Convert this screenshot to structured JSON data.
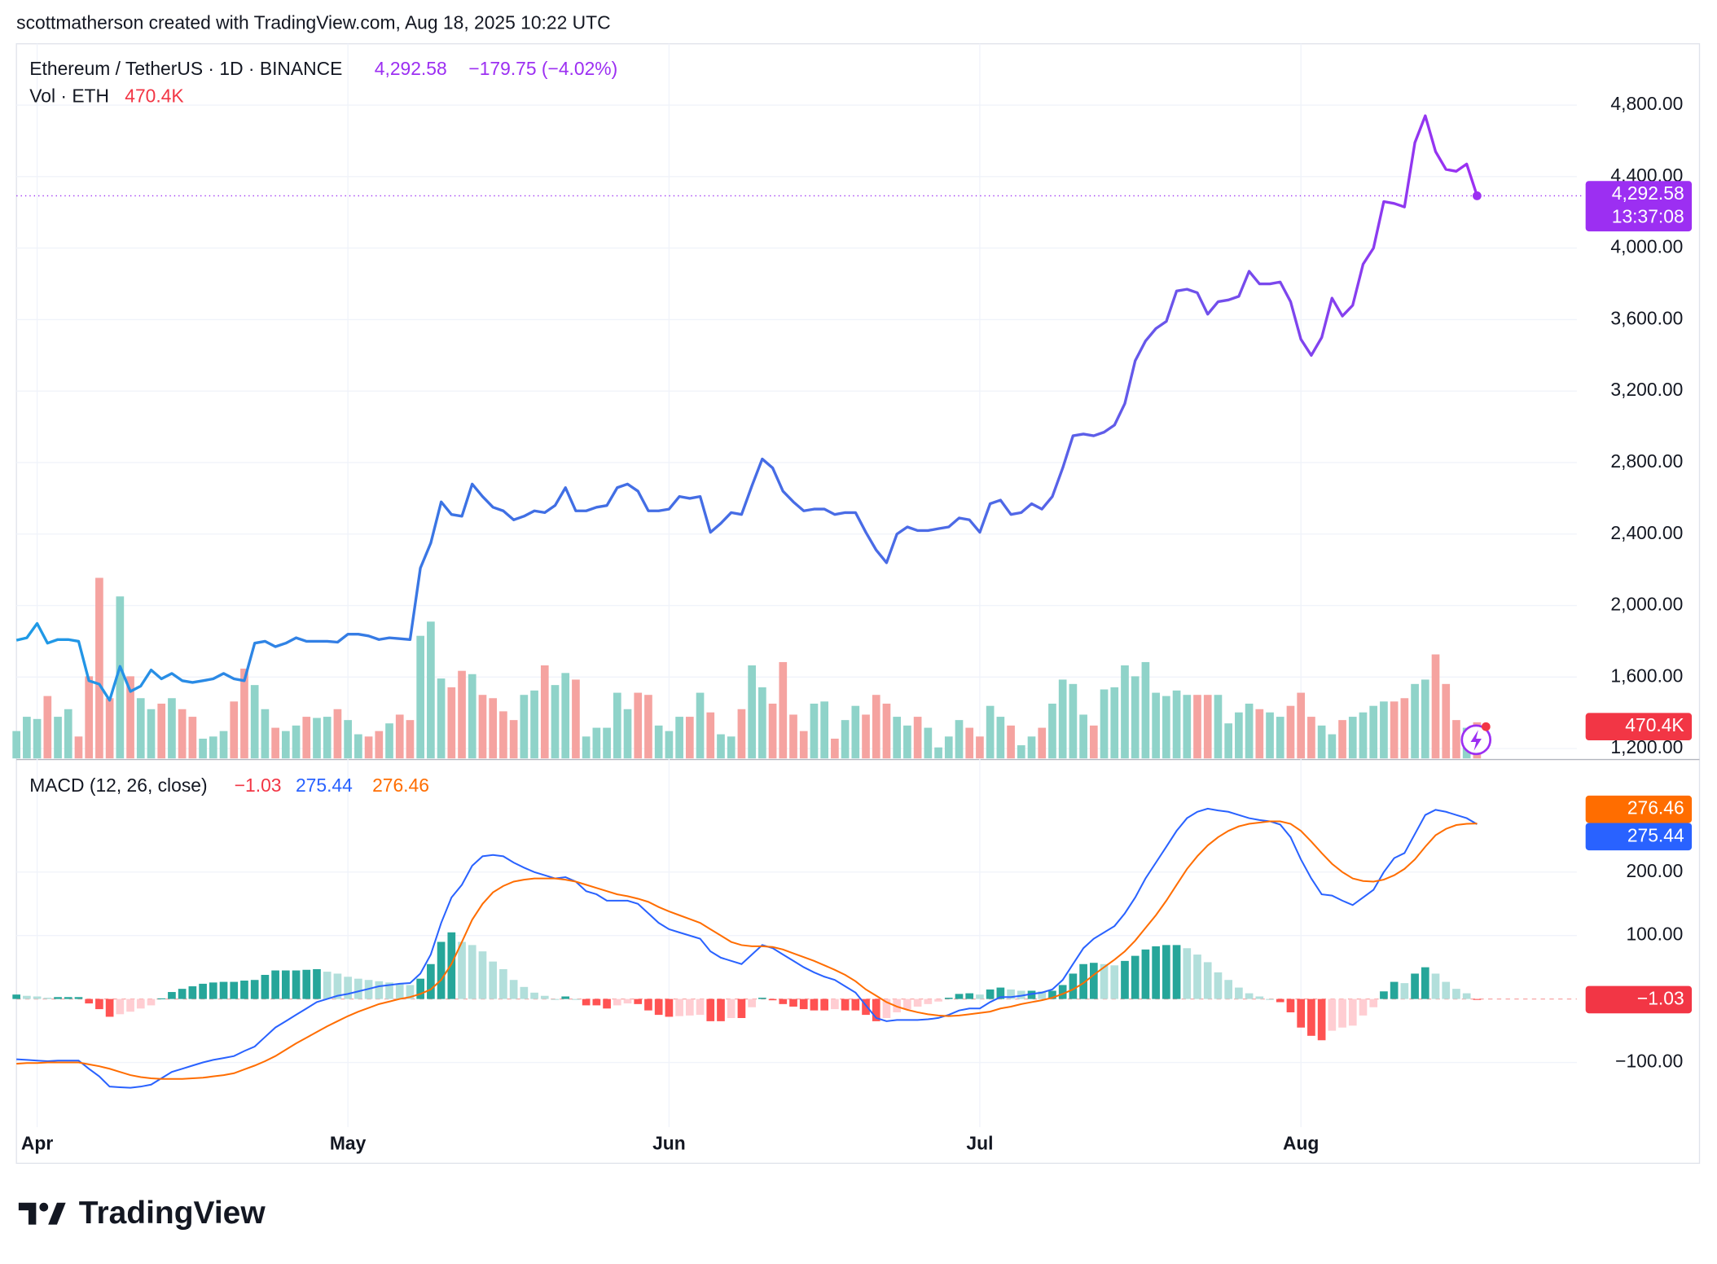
{
  "attribution": "scottmatherson created with TradingView.com, Aug 18, 2025 10:22 UTC",
  "brand": "TradingView",
  "chart_data": [
    {
      "type": "line",
      "ylim": [
        1145,
        5143
      ],
      "yticks": [
        {
          "value": 1200,
          "label": "1,200.00"
        },
        {
          "value": 1600,
          "label": "1,600.00"
        },
        {
          "value": 2000,
          "label": "2,000.00"
        },
        {
          "value": 2400,
          "label": "2,400.00"
        },
        {
          "value": 2800,
          "label": "2,800.00"
        },
        {
          "value": 3200,
          "label": "3,200.00"
        },
        {
          "value": 3600,
          "label": "3,600.00"
        },
        {
          "value": 4000,
          "label": "4,000.00"
        },
        {
          "value": 4400,
          "label": "4,400.00"
        },
        {
          "value": 4800,
          "label": "4,800.00"
        }
      ],
      "grid": true,
      "countdown": "13:37:08",
      "series": [
        {
          "name": "Ethereum / TetherUS · 1D · BINANCE",
          "last_label": "4,292.58",
          "change_label": "−179.75 (−4.02%)",
          "colors": [
            "#1e9be6",
            "#3f6fe4",
            "#4d6ae6",
            "#9c2ff2"
          ],
          "values": [
            1806,
            1820,
            1900,
            1790,
            1810,
            1810,
            1800,
            1580,
            1560,
            1470,
            1660,
            1520,
            1550,
            1640,
            1590,
            1620,
            1580,
            1570,
            1580,
            1590,
            1620,
            1590,
            1580,
            1790,
            1800,
            1770,
            1790,
            1820,
            1800,
            1800,
            1800,
            1795,
            1840,
            1840,
            1830,
            1810,
            1820,
            1815,
            1810,
            2210,
            2350,
            2580,
            2510,
            2500,
            2680,
            2610,
            2550,
            2530,
            2480,
            2500,
            2530,
            2520,
            2560,
            2660,
            2530,
            2530,
            2550,
            2560,
            2660,
            2680,
            2640,
            2530,
            2530,
            2540,
            2610,
            2600,
            2610,
            2410,
            2460,
            2520,
            2510,
            2670,
            2820,
            2770,
            2640,
            2580,
            2530,
            2540,
            2540,
            2510,
            2520,
            2520,
            2410,
            2310,
            2240,
            2400,
            2440,
            2420,
            2420,
            2430,
            2440,
            2490,
            2480,
            2410,
            2570,
            2590,
            2510,
            2520,
            2570,
            2540,
            2610,
            2770,
            2950,
            2960,
            2950,
            2970,
            3010,
            3130,
            3370,
            3480,
            3550,
            3590,
            3760,
            3770,
            3750,
            3630,
            3700,
            3710,
            3730,
            3870,
            3800,
            3800,
            3810,
            3700,
            3490,
            3400,
            3500,
            3720,
            3620,
            3680,
            3910,
            4000,
            4260,
            4250,
            4230,
            4590,
            4740,
            4540,
            4440,
            4430,
            4470,
            4292.58
          ]
        },
        {
          "name": "Vol · ETH",
          "last_label": "470.4K",
          "up_color": "#8fd3c9",
          "down_color": "#f5a3a0",
          "label_color": "#f23645",
          "values": [
            356000,
            542000,
            513000,
            812000,
            542000,
            641000,
            285000,
            1069000,
            2351000,
            784000,
            2109000,
            1069000,
            784000,
            641000,
            713000,
            784000,
            641000,
            542000,
            257000,
            285000,
            356000,
            741000,
            1169000,
            955000,
            641000,
            399000,
            356000,
            428000,
            542000,
            527000,
            542000,
            641000,
            499000,
            314000,
            285000,
            356000,
            456000,
            570000,
            499000,
            1596000,
            1781000,
            1040000,
            926000,
            1140000,
            1097000,
            827000,
            784000,
            613000,
            499000,
            827000,
            884000,
            1211000,
            955000,
            1112000,
            1026000,
            285000,
            399000,
            399000,
            855000,
            641000,
            855000,
            827000,
            428000,
            356000,
            542000,
            542000,
            855000,
            599000,
            314000,
            285000,
            641000,
            1211000,
            926000,
            713000,
            1254000,
            570000,
            356000,
            713000,
            741000,
            257000,
            499000,
            684000,
            570000,
            827000,
            713000,
            542000,
            428000,
            542000,
            399000,
            143000,
            285000,
            499000,
            399000,
            285000,
            684000,
            542000,
            428000,
            171000,
            285000,
            399000,
            713000,
            1026000,
            969000,
            570000,
            428000,
            898000,
            926000,
            1211000,
            1069000,
            1254000,
            855000,
            812000,
            884000,
            827000,
            827000,
            827000,
            827000,
            456000,
            599000,
            713000,
            641000,
            599000,
            542000,
            684000,
            855000,
            542000,
            428000,
            314000,
            499000,
            542000,
            599000,
            684000,
            741000,
            741000,
            784000,
            969000,
            1026000,
            1354000,
            969000,
            499000,
            399000,
            470400
          ]
        }
      ]
    },
    {
      "type": "macd",
      "title": "MACD (12, 26, close)",
      "ylim": [
        -202,
        367
      ],
      "yticks": [
        {
          "value": -100,
          "label": "−100.00"
        },
        {
          "value": 100,
          "label": "100.00"
        },
        {
          "value": 200,
          "label": "200.00"
        }
      ],
      "grid": true,
      "categories": [
        null,
        null,
        "Apr",
        null,
        null,
        null,
        null,
        null,
        null,
        null,
        null,
        null,
        null,
        null,
        null,
        null,
        null,
        null,
        null,
        null,
        null,
        null,
        null,
        null,
        null,
        null,
        null,
        null,
        null,
        null,
        null,
        null,
        "May",
        null,
        null,
        null,
        null,
        null,
        null,
        null,
        null,
        null,
        null,
        null,
        null,
        null,
        null,
        null,
        null,
        null,
        null,
        null,
        null,
        null,
        null,
        null,
        null,
        null,
        null,
        null,
        null,
        null,
        null,
        "Jun",
        null,
        null,
        null,
        null,
        null,
        null,
        null,
        null,
        null,
        null,
        null,
        null,
        null,
        null,
        null,
        null,
        null,
        null,
        null,
        null,
        null,
        null,
        null,
        null,
        null,
        null,
        null,
        null,
        null,
        "Jul",
        null,
        null,
        null,
        null,
        null,
        null,
        null,
        null,
        null,
        null,
        null,
        null,
        null,
        null,
        null,
        null,
        null,
        null,
        null,
        null,
        null,
        null,
        null,
        null,
        null,
        null,
        null,
        null,
        null,
        null,
        "Aug",
        null,
        null,
        null,
        null,
        null,
        null,
        null,
        null,
        null,
        null,
        null,
        null,
        null,
        null,
        null,
        null,
        null
      ],
      "series": [
        {
          "last_label": "−1.03",
          "colors": [
            "#26a69a",
            "#b2dfdb",
            "#ff5252",
            "#ffcdd2"
          ],
          "values": [
            7,
            5,
            4,
            2,
            3,
            3,
            3,
            -7,
            -16,
            -28,
            -24,
            -20,
            -15,
            -10,
            1,
            11,
            16,
            20,
            24,
            26,
            27,
            27,
            29,
            30,
            38,
            45,
            45,
            45,
            46,
            47,
            43,
            40,
            35,
            32,
            30,
            28,
            26,
            24,
            22,
            32,
            55,
            90,
            105,
            90,
            85,
            75,
            59,
            47,
            30,
            19,
            10,
            5,
            0,
            4,
            0,
            -10,
            -10,
            -15,
            -10,
            -7,
            -8,
            -18,
            -25,
            -28,
            -27,
            -26,
            -25,
            -35,
            -35,
            -30,
            -30,
            -13,
            2,
            -2,
            -8,
            -12,
            -16,
            -18,
            -18,
            -16,
            -18,
            -18,
            -25,
            -35,
            -30,
            -21,
            -16,
            -12,
            -8,
            -4,
            2,
            8,
            9,
            7,
            15,
            18,
            15,
            13,
            13,
            12,
            13,
            22,
            40,
            55,
            57,
            55,
            53,
            60,
            68,
            78,
            83,
            85,
            85,
            80,
            70,
            58,
            42,
            30,
            18,
            9,
            4,
            0,
            -5,
            -21,
            -45,
            -58,
            -65,
            -50,
            -45,
            -42,
            -26,
            -13,
            12,
            27,
            25,
            40,
            50,
            40,
            27,
            16,
            9,
            -1.03
          ]
        },
        {
          "last_label": "275.44",
          "color": "#2962ff",
          "values": [
            -95,
            -96,
            -97,
            -98,
            -97,
            -97,
            -97,
            -110,
            -122,
            -138,
            -139,
            -140,
            -138,
            -135,
            -125,
            -115,
            -110,
            -105,
            -100,
            -96,
            -93,
            -90,
            -82,
            -75,
            -60,
            -45,
            -35,
            -25,
            -15,
            -5,
            0,
            5,
            8,
            12,
            16,
            20,
            22,
            24,
            25,
            40,
            70,
            120,
            160,
            180,
            210,
            225,
            227,
            225,
            215,
            207,
            200,
            195,
            190,
            192,
            185,
            170,
            165,
            155,
            155,
            155,
            150,
            135,
            120,
            110,
            105,
            100,
            95,
            75,
            65,
            60,
            55,
            70,
            85,
            80,
            70,
            60,
            50,
            42,
            35,
            30,
            20,
            10,
            -10,
            -30,
            -35,
            -33,
            -33,
            -33,
            -32,
            -30,
            -25,
            -18,
            -15,
            -15,
            -5,
            3,
            3,
            5,
            8,
            10,
            15,
            30,
            55,
            80,
            95,
            105,
            115,
            135,
            160,
            190,
            215,
            240,
            265,
            285,
            295,
            300,
            297,
            295,
            290,
            285,
            282,
            280,
            275,
            255,
            220,
            190,
            165,
            163,
            155,
            148,
            160,
            172,
            200,
            222,
            230,
            260,
            290,
            298,
            295,
            290,
            285,
            275.44
          ]
        },
        {
          "last_label": "276.46",
          "color": "#ff6d00",
          "values": [
            -102,
            -101,
            -101,
            -100,
            -100,
            -100,
            -100,
            -103,
            -106,
            -110,
            -115,
            -120,
            -123,
            -125,
            -126,
            -126,
            -126,
            -125,
            -124,
            -122,
            -120,
            -117,
            -111,
            -105,
            -98,
            -90,
            -80,
            -70,
            -61,
            -52,
            -43,
            -35,
            -27,
            -20,
            -14,
            -8,
            -4,
            0,
            3,
            8,
            15,
            30,
            55,
            90,
            125,
            150,
            168,
            178,
            185,
            188,
            190,
            190,
            190,
            188,
            185,
            180,
            175,
            170,
            165,
            162,
            158,
            153,
            145,
            138,
            132,
            126,
            120,
            110,
            100,
            90,
            85,
            83,
            83,
            82,
            78,
            72,
            66,
            60,
            53,
            46,
            38,
            28,
            15,
            5,
            -5,
            -12,
            -17,
            -21,
            -24,
            -26,
            -27,
            -26,
            -24,
            -22,
            -20,
            -15,
            -12,
            -8,
            -5,
            -2,
            2,
            8,
            15,
            25,
            38,
            50,
            62,
            75,
            92,
            112,
            132,
            155,
            180,
            205,
            225,
            242,
            255,
            265,
            272,
            276,
            278,
            280,
            280,
            276,
            265,
            248,
            230,
            213,
            200,
            190,
            186,
            185,
            188,
            195,
            205,
            220,
            240,
            258,
            268,
            274,
            276,
            276.46
          ]
        }
      ]
    }
  ]
}
